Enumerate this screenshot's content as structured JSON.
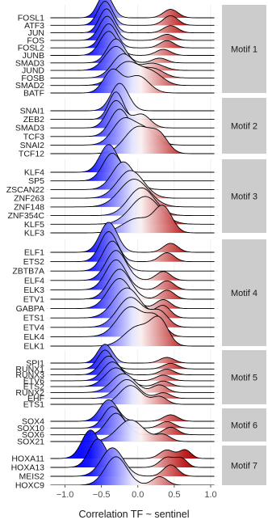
{
  "chart_data": {
    "type": "ridgeline",
    "xlabel": "Correlation TF ~ sentinel",
    "xlim": [
      -1.25,
      1.1
    ],
    "xticks": [
      -1.0,
      -0.5,
      0.0,
      0.5,
      1.0
    ],
    "xtick_labels": [
      "−1.0",
      "−0.5",
      "0.0",
      "0.5",
      "1.0"
    ],
    "fill_gradient": {
      "low": "#0000ff",
      "mid": "#ffffff",
      "high": "#b30000",
      "midpoint": 0.0
    },
    "facets": [
      {
        "label": "Motif 1",
        "tfs": [
          {
            "name": "FOSL1",
            "modes": [
              [
                -0.45,
                0.1,
                1.0
              ],
              [
                0.45,
                0.1,
                0.35
              ]
            ]
          },
          {
            "name": "ATF3",
            "modes": [
              [
                -0.45,
                0.1,
                1.0
              ],
              [
                0.45,
                0.1,
                0.4
              ]
            ]
          },
          {
            "name": "JUN",
            "modes": [
              [
                -0.43,
                0.1,
                1.0
              ],
              [
                0.45,
                0.1,
                0.3
              ]
            ]
          },
          {
            "name": "FOS",
            "modes": [
              [
                -0.42,
                0.11,
                1.0
              ],
              [
                0.4,
                0.1,
                0.25
              ]
            ]
          },
          {
            "name": "FOSL2",
            "modes": [
              [
                -0.4,
                0.11,
                1.0
              ],
              [
                0.4,
                0.1,
                0.3
              ]
            ]
          },
          {
            "name": "JUNB",
            "modes": [
              [
                -0.4,
                0.12,
                1.0
              ],
              [
                0.35,
                0.1,
                0.25
              ]
            ]
          },
          {
            "name": "SMAD3",
            "modes": [
              [
                -0.3,
                0.12,
                1.0
              ],
              [
                0.3,
                0.1,
                0.2
              ]
            ]
          },
          {
            "name": "JUND",
            "modes": [
              [
                -0.3,
                0.15,
                1.0
              ],
              [
                0.2,
                0.15,
                0.3
              ]
            ]
          },
          {
            "name": "FOSB",
            "modes": [
              [
                -0.2,
                0.15,
                1.0
              ],
              [
                0.2,
                0.15,
                0.4
              ]
            ]
          },
          {
            "name": "SMAD2",
            "modes": [
              [
                -0.15,
                0.18,
                1.0
              ],
              [
                0.2,
                0.15,
                0.5
              ]
            ]
          },
          {
            "name": "BATF",
            "modes": [
              [
                -0.35,
                0.12,
                0.8
              ],
              [
                0.0,
                0.15,
                0.6
              ]
            ]
          }
        ]
      },
      {
        "label": "Motif 2",
        "tfs": [
          {
            "name": "SNAI1",
            "modes": [
              [
                -0.25,
                0.12,
                1.0
              ]
            ]
          },
          {
            "name": "ZEB2",
            "modes": [
              [
                -0.3,
                0.1,
                1.0
              ]
            ]
          },
          {
            "name": "SMAD3",
            "modes": [
              [
                -0.3,
                0.12,
                1.0
              ],
              [
                0.05,
                0.12,
                0.5
              ]
            ]
          },
          {
            "name": "TCF3",
            "modes": [
              [
                -0.25,
                0.13,
                1.0
              ]
            ]
          },
          {
            "name": "SNAI2",
            "modes": [
              [
                -0.2,
                0.15,
                1.0
              ],
              [
                0.1,
                0.15,
                0.6
              ]
            ]
          },
          {
            "name": "TCF12",
            "modes": [
              [
                0.0,
                0.18,
                1.0
              ],
              [
                0.3,
                0.12,
                0.6
              ]
            ]
          }
        ]
      },
      {
        "label": "Motif 3",
        "tfs": [
          {
            "name": "KLF4",
            "modes": [
              [
                -0.4,
                0.12,
                1.0
              ]
            ]
          },
          {
            "name": "SP5",
            "modes": [
              [
                -0.35,
                0.13,
                1.0
              ]
            ]
          },
          {
            "name": "ZSCAN22",
            "modes": [
              [
                -0.2,
                0.15,
                1.0
              ]
            ]
          },
          {
            "name": "ZNF263",
            "modes": [
              [
                -0.1,
                0.18,
                1.0
              ]
            ]
          },
          {
            "name": "ZNF148",
            "modes": [
              [
                -0.05,
                0.2,
                1.0
              ]
            ]
          },
          {
            "name": "ZNF354C",
            "modes": [
              [
                0.05,
                0.18,
                1.0
              ]
            ]
          },
          {
            "name": "KLF5",
            "modes": [
              [
                0.1,
                0.2,
                1.0
              ]
            ]
          },
          {
            "name": "KLF3",
            "modes": [
              [
                0.0,
                0.2,
                0.6
              ],
              [
                0.35,
                0.12,
                1.0
              ]
            ]
          }
        ]
      },
      {
        "label": "Motif 4",
        "tfs": [
          {
            "name": "ELF1",
            "modes": [
              [
                -0.4,
                0.12,
                1.0
              ],
              [
                0.45,
                0.1,
                0.3
              ]
            ]
          },
          {
            "name": "ETS2",
            "modes": [
              [
                -0.4,
                0.12,
                1.0
              ],
              [
                0.4,
                0.1,
                0.3
              ]
            ]
          },
          {
            "name": "ZBTB7A",
            "modes": [
              [
                -0.35,
                0.13,
                1.0
              ]
            ]
          },
          {
            "name": "ELF4",
            "modes": [
              [
                -0.3,
                0.14,
                1.0
              ],
              [
                0.35,
                0.1,
                0.3
              ]
            ]
          },
          {
            "name": "ELK3",
            "modes": [
              [
                -0.3,
                0.14,
                1.0
              ],
              [
                0.4,
                0.1,
                0.3
              ]
            ]
          },
          {
            "name": "ETV1",
            "modes": [
              [
                -0.25,
                0.15,
                1.0
              ],
              [
                0.4,
                0.1,
                0.3
              ]
            ]
          },
          {
            "name": "GABPA",
            "modes": [
              [
                -0.25,
                0.16,
                1.0
              ],
              [
                0.35,
                0.1,
                0.3
              ]
            ]
          },
          {
            "name": "ETS1",
            "modes": [
              [
                -0.15,
                0.18,
                1.0
              ],
              [
                0.35,
                0.1,
                0.4
              ]
            ]
          },
          {
            "name": "ETV4",
            "modes": [
              [
                -0.1,
                0.18,
                1.0
              ],
              [
                0.3,
                0.12,
                0.5
              ]
            ]
          },
          {
            "name": "ELK4",
            "modes": [
              [
                -0.1,
                0.18,
                1.0
              ],
              [
                0.25,
                0.12,
                0.6
              ]
            ]
          },
          {
            "name": "ELK1",
            "modes": [
              [
                0.0,
                0.18,
                0.8
              ],
              [
                0.3,
                0.12,
                1.0
              ]
            ]
          }
        ]
      },
      {
        "label": "Motif 5",
        "tfs": [
          {
            "name": "SPI1",
            "modes": [
              [
                -0.45,
                0.1,
                1.0
              ],
              [
                0.4,
                0.1,
                0.3
              ]
            ]
          },
          {
            "name": "RUNX1",
            "modes": [
              [
                -0.45,
                0.1,
                1.0
              ],
              [
                0.45,
                0.1,
                0.3
              ]
            ]
          },
          {
            "name": "RUNX3",
            "modes": [
              [
                -0.4,
                0.12,
                1.0
              ],
              [
                0.4,
                0.1,
                0.3
              ]
            ]
          },
          {
            "name": "ETV6",
            "modes": [
              [
                -0.35,
                0.13,
                1.0
              ],
              [
                0.35,
                0.1,
                0.3
              ]
            ]
          },
          {
            "name": "ETS2",
            "modes": [
              [
                -0.3,
                0.15,
                1.0
              ],
              [
                0.35,
                0.1,
                0.3
              ]
            ]
          },
          {
            "name": "RUNX2",
            "modes": [
              [
                -0.2,
                0.16,
                1.0
              ],
              [
                0.3,
                0.1,
                0.4
              ]
            ]
          },
          {
            "name": "EHF",
            "modes": [
              [
                -0.15,
                0.15,
                1.0
              ],
              [
                0.35,
                0.1,
                0.3
              ]
            ]
          },
          {
            "name": "ETS1",
            "modes": [
              [
                -0.1,
                0.15,
                1.0
              ],
              [
                0.3,
                0.1,
                0.4
              ]
            ]
          }
        ]
      },
      {
        "label": "Motif 6",
        "tfs": [
          {
            "name": "SOX4",
            "modes": [
              [
                -0.4,
                0.12,
                1.0
              ],
              [
                0.45,
                0.1,
                0.3
              ]
            ]
          },
          {
            "name": "SOX10",
            "modes": [
              [
                -0.35,
                0.12,
                1.0
              ],
              [
                0.4,
                0.1,
                0.3
              ]
            ]
          },
          {
            "name": "SOX6",
            "modes": [
              [
                -0.3,
                0.13,
                1.0
              ],
              [
                0.45,
                0.1,
                0.35
              ]
            ]
          },
          {
            "name": "SOX21",
            "modes": [
              [
                -0.1,
                0.18,
                1.0
              ],
              [
                0.35,
                0.1,
                0.3
              ]
            ]
          }
        ]
      },
      {
        "label": "Motif 7",
        "tfs": [
          {
            "name": "HOXA11",
            "modes": [
              [
                -0.65,
                0.12,
                1.0
              ],
              [
                0.4,
                0.1,
                0.3
              ],
              [
                0.65,
                0.08,
                0.3
              ]
            ]
          },
          {
            "name": "HOXA13",
            "modes": [
              [
                -0.55,
                0.12,
                1.0
              ],
              [
                0.4,
                0.1,
                0.35
              ],
              [
                0.6,
                0.08,
                0.3
              ]
            ]
          },
          {
            "name": "MEIS2",
            "modes": [
              [
                -0.35,
                0.15,
                1.0
              ],
              [
                0.45,
                0.1,
                0.4
              ]
            ]
          },
          {
            "name": "HOXC9",
            "modes": [
              [
                -0.3,
                0.15,
                1.0
              ],
              [
                0.3,
                0.1,
                0.3
              ]
            ]
          }
        ]
      }
    ]
  }
}
